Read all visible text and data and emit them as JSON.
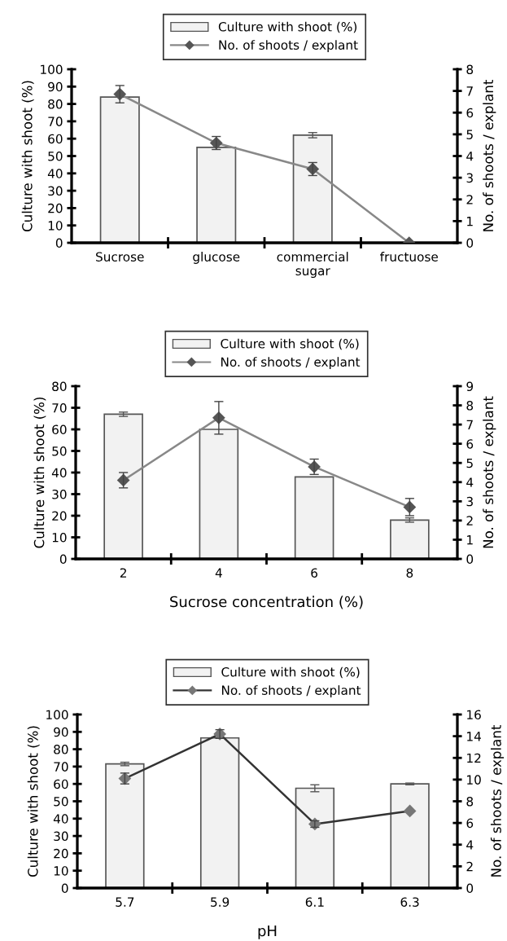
{
  "chart_data": [
    {
      "type": "bar",
      "categories": [
        "Sucrose",
        "glucose",
        "commercial\nsugar",
        "fructuose"
      ],
      "ylabel": "Culture with shoot (%)",
      "y2label": "No. of shoots / explant",
      "ylim": [
        0,
        100
      ],
      "yticks": [
        0,
        10,
        20,
        30,
        40,
        50,
        60,
        70,
        80,
        90,
        100
      ],
      "y2lim": [
        0,
        8
      ],
      "y2ticks": [
        0,
        1,
        2,
        3,
        4,
        5,
        6,
        7,
        8
      ],
      "legend": "top",
      "grid": false,
      "series": [
        {
          "name": "Culture with shoot (%)",
          "color": "#f2f2f2",
          "values": [
            84,
            55,
            62,
            null
          ],
          "errors": [
            null,
            null,
            1.5,
            null
          ]
        },
        {
          "name": "No. of shoots / explant",
          "type": "line",
          "axis": "y2",
          "color": "#888888",
          "marker": "diamond",
          "values": [
            6.85,
            4.6,
            3.4,
            0
          ],
          "errors": [
            0.4,
            0.3,
            0.3,
            null
          ]
        }
      ]
    },
    {
      "type": "bar",
      "categories": [
        "2",
        "4",
        "6",
        "8"
      ],
      "xlabel": "Sucrose concentration (%)",
      "ylabel": "Culture with shoot (%)",
      "y2label": "No. of shoots / explant",
      "ylim": [
        0,
        80
      ],
      "yticks": [
        0,
        10,
        20,
        30,
        40,
        50,
        60,
        70,
        80
      ],
      "y2lim": [
        0,
        9
      ],
      "y2ticks": [
        0,
        1,
        2,
        3,
        4,
        5,
        6,
        7,
        8,
        9
      ],
      "legend": "top",
      "grid": false,
      "series": [
        {
          "name": "Culture with shoot (%)",
          "color": "#f2f2f2",
          "values": [
            67,
            60,
            38,
            18
          ],
          "errors": [
            1,
            null,
            null,
            1
          ]
        },
        {
          "name": "No. of shoots / explant",
          "type": "line",
          "axis": "y2",
          "color": "#888888",
          "marker": "diamond",
          "values": [
            4.1,
            7.35,
            4.8,
            2.7
          ],
          "errors": [
            0.4,
            0.85,
            0.4,
            0.45
          ]
        }
      ]
    },
    {
      "type": "bar",
      "categories": [
        "5.7",
        "5.9",
        "6.1",
        "6.3"
      ],
      "xlabel": "pH",
      "ylabel": "Culture with shoot (%)",
      "y2label": "No. of shoots / explant",
      "ylim": [
        0,
        100
      ],
      "yticks": [
        0,
        10,
        20,
        30,
        40,
        50,
        60,
        70,
        80,
        90,
        100
      ],
      "y2lim": [
        0,
        16
      ],
      "y2ticks": [
        0,
        2,
        4,
        6,
        8,
        10,
        12,
        14,
        16
      ],
      "legend": "top",
      "grid": false,
      "series": [
        {
          "name": "Culture with shoot (%)",
          "color": "#f2f2f2",
          "values": [
            71.5,
            86.5,
            57.5,
            60
          ],
          "errors": [
            1,
            null,
            2,
            0.5
          ]
        },
        {
          "name": "No. of shoots / explant",
          "type": "line",
          "axis": "y2",
          "color": "#333333",
          "marker": "diamond",
          "values": [
            10.1,
            14.2,
            5.9,
            7.1
          ],
          "errors": [
            0.5,
            0.4,
            0.3,
            null
          ]
        }
      ]
    }
  ]
}
